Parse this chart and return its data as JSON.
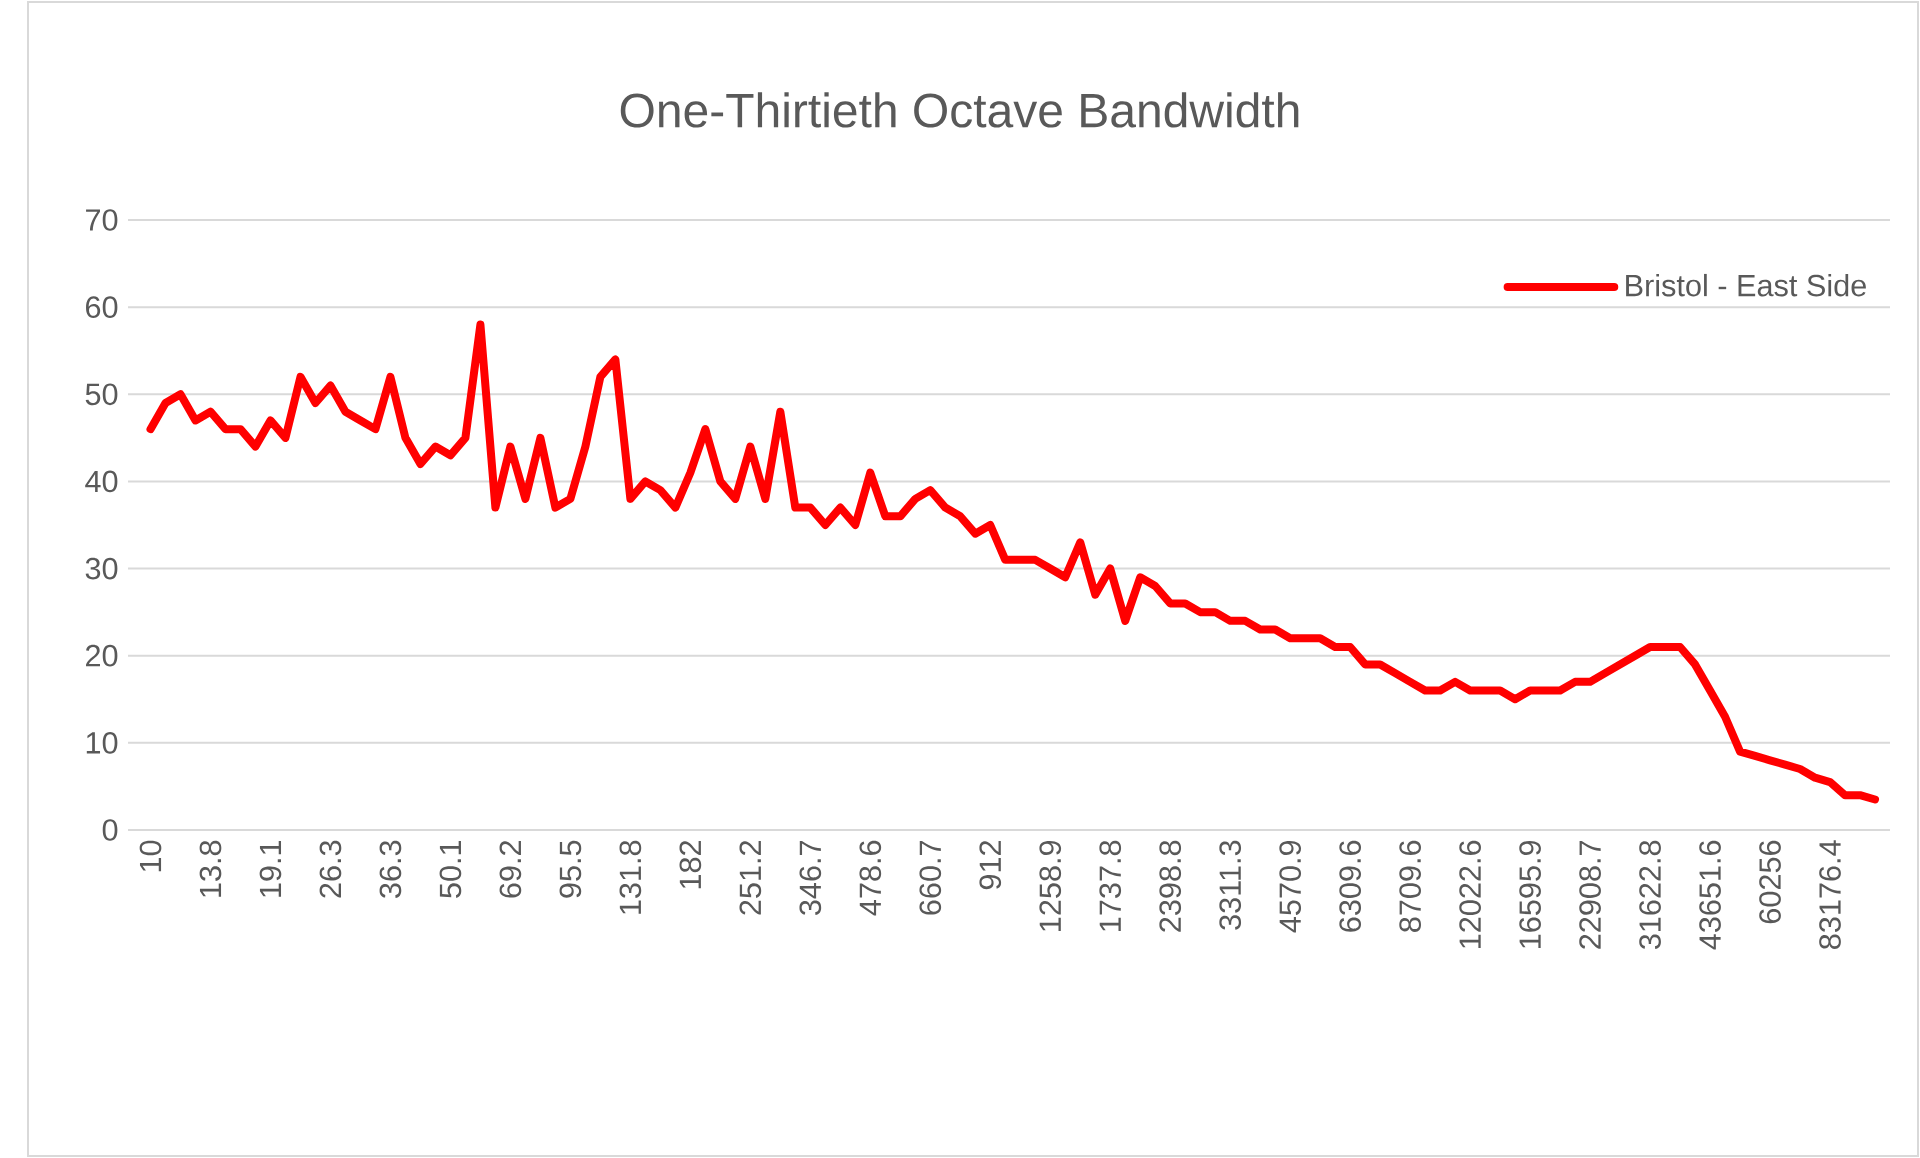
{
  "chart_data": {
    "type": "line",
    "title": "One-Thirtieth Octave Bandwidth",
    "categories": [
      "10",
      null,
      null,
      null,
      "13.8",
      null,
      null,
      null,
      "19.1",
      null,
      null,
      null,
      "26.3",
      null,
      null,
      null,
      "36.3",
      null,
      null,
      null,
      "50.1",
      null,
      null,
      null,
      "69.2",
      null,
      null,
      null,
      "95.5",
      null,
      null,
      null,
      "131.8",
      null,
      null,
      null,
      "182",
      null,
      null,
      null,
      "251.2",
      null,
      null,
      null,
      "346.7",
      null,
      null,
      null,
      "478.6",
      null,
      null,
      null,
      "660.7",
      null,
      null,
      null,
      "912",
      null,
      null,
      null,
      "1258.9",
      null,
      null,
      null,
      "1737.8",
      null,
      null,
      null,
      "2398.8",
      null,
      null,
      null,
      "3311.3",
      null,
      null,
      null,
      "4570.9",
      null,
      null,
      null,
      "6309.6",
      null,
      null,
      null,
      "8709.6",
      null,
      null,
      null,
      "12022.6",
      null,
      null,
      null,
      "16595.9",
      null,
      null,
      null,
      "22908.7",
      null,
      null,
      null,
      "31622.8",
      null,
      null,
      null,
      "43651.6",
      null,
      null,
      null,
      "60256",
      null,
      null,
      null,
      "83176.4",
      null,
      null,
      null
    ],
    "series": [
      {
        "name": "Bristol - East Side",
        "color": "#ff0000",
        "values": [
          46,
          49,
          50,
          47,
          48,
          46,
          46,
          44,
          47,
          45,
          52,
          49,
          51,
          48,
          47,
          46,
          52,
          45,
          42,
          44,
          43,
          45,
          58,
          37,
          44,
          38,
          45,
          37,
          38,
          44,
          52,
          54,
          38,
          40,
          39,
          37,
          41,
          46,
          40,
          38,
          44,
          38,
          48,
          37,
          37,
          35,
          37,
          35,
          41,
          36,
          36,
          38,
          39,
          37,
          36,
          34,
          35,
          31,
          31,
          31,
          30,
          29,
          33,
          27,
          30,
          24,
          29,
          28,
          26,
          26,
          25,
          25,
          24,
          24,
          23,
          23,
          22,
          22,
          22,
          21,
          21,
          19,
          19,
          18,
          17,
          16,
          16,
          17,
          16,
          16,
          16,
          15,
          16,
          16,
          16,
          17,
          17,
          18,
          19,
          20,
          21,
          21,
          21,
          19,
          16,
          13,
          9,
          8.5,
          8,
          7.5,
          7,
          6,
          5.5,
          4,
          4,
          3.5
        ]
      }
    ],
    "ylim": [
      0,
      70
    ],
    "yticks": [
      0,
      10,
      20,
      30,
      40,
      50,
      60,
      70
    ],
    "grid": "y",
    "legend": "top right",
    "marker": "none",
    "line_style": "solid"
  }
}
